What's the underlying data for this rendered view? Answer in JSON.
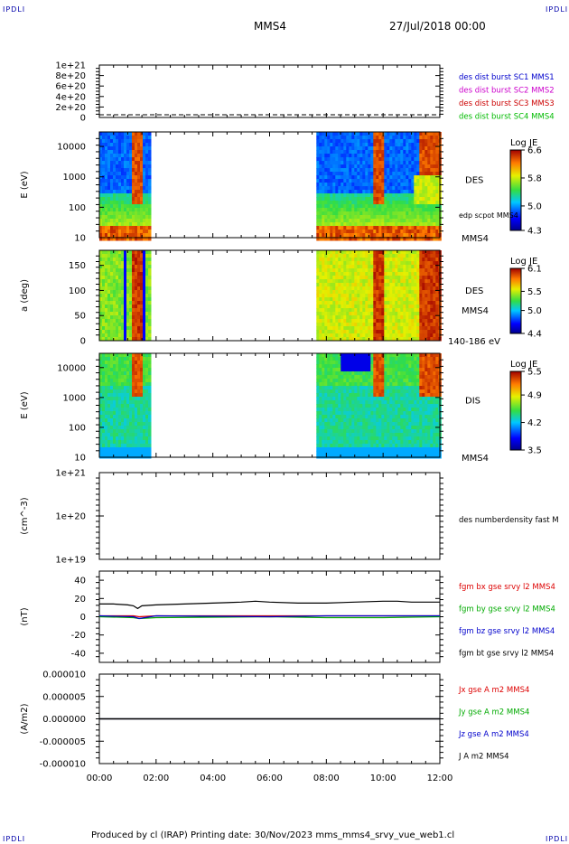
{
  "corners": {
    "label": "IPDLI"
  },
  "header": {
    "spacecraft": "MMS4",
    "datetime": "27/Jul/2018 00:00"
  },
  "footer": {
    "text": "Produced by cl (IRAP)   Printing date: 30/Nov/2023   mms_mms4_srvy_vue_web1.cl"
  },
  "colors": {
    "mms1": "#0000cc",
    "mms2": "#cc00cc",
    "mms3": "#cc0000",
    "mms4": "#00bb00",
    "bx": "#dd0000",
    "by": "#00aa00",
    "bz": "#0000cc",
    "bt": "#000000"
  },
  "time_axis": {
    "range_hours": [
      0,
      12
    ],
    "ticks": [
      "00:00",
      "02:00",
      "04:00",
      "06:00",
      "08:00",
      "10:00",
      "12:00"
    ]
  },
  "chart_data": [
    {
      "type": "line",
      "panel": "des-dist-burst",
      "yticks": [
        "1e+21",
        "8e+20",
        "6e+20",
        "4e+20",
        "2e+20",
        "0"
      ],
      "series": [
        {
          "name": "des dist burst SC1 MMS1",
          "x": [
            0,
            12
          ],
          "values": [
            0,
            0
          ]
        },
        {
          "name": "des dist burst SC2 MMS2",
          "x": [
            0,
            12
          ],
          "values": [
            0,
            0
          ]
        },
        {
          "name": "des dist burst SC3 MMS3",
          "x": [
            0,
            12
          ],
          "values": [
            0,
            0
          ]
        },
        {
          "name": "des dist burst SC4 MMS4",
          "x": [
            0,
            12
          ],
          "values": [
            0,
            0
          ]
        }
      ],
      "ylim": [
        0,
        1e+21
      ]
    },
    {
      "type": "heatmap",
      "panel": "des-energy",
      "ylabel": "E (eV)",
      "yticks": [
        "10000",
        "1000",
        "100",
        "10"
      ],
      "ylog": true,
      "ylim": [
        10,
        30000
      ],
      "right_label": "DES",
      "right_sub": "edp scpot MMS4",
      "right_bottom": "MMS4",
      "colorbar": {
        "title": "Log JE",
        "ticks": [
          "6.6",
          "5.8",
          "5.0",
          "4.3"
        ],
        "range": [
          4.3,
          6.6
        ]
      },
      "data_intervals_hours": [
        [
          0,
          1.75
        ],
        [
          7.65,
          12
        ]
      ]
    },
    {
      "type": "heatmap",
      "panel": "des-pitch-angle",
      "ylabel": "a (deg)",
      "yticks": [
        "150",
        "100",
        "50",
        "0"
      ],
      "ylim": [
        0,
        180
      ],
      "right_label": "DES",
      "right_sub": "MMS4",
      "right_bottom": "140-186 eV",
      "colorbar": {
        "title": "Log JE",
        "ticks": [
          "6.1",
          "5.5",
          "5.0",
          "4.4"
        ],
        "range": [
          4.4,
          6.1
        ]
      },
      "data_intervals_hours": [
        [
          0,
          1.75
        ],
        [
          7.65,
          12
        ]
      ]
    },
    {
      "type": "heatmap",
      "panel": "dis-energy",
      "ylabel": "E (eV)",
      "yticks": [
        "10000",
        "1000",
        "100",
        "10"
      ],
      "ylog": true,
      "ylim": [
        10,
        30000
      ],
      "right_label": "DIS",
      "right_bottom": "MMS4",
      "colorbar": {
        "title": "Log JE",
        "ticks": [
          "5.5",
          "4.9",
          "4.2",
          "3.5"
        ],
        "range": [
          3.5,
          5.5
        ]
      },
      "data_intervals_hours": [
        [
          0,
          1.75
        ],
        [
          7.65,
          12
        ]
      ]
    },
    {
      "type": "line",
      "panel": "des-density",
      "ylabel": "(cm^-3)",
      "yticks": [
        "1e+21",
        "1e+20",
        "1e+19"
      ],
      "ylog": true,
      "ylim": [
        1e+19,
        1e+21
      ],
      "right_label": "des numberdensity fast M",
      "series": []
    },
    {
      "type": "line",
      "panel": "fgm",
      "ylabel": "(nT)",
      "yticks": [
        "40",
        "20",
        "0",
        "-20",
        "-40"
      ],
      "ylim": [
        -50,
        50
      ],
      "series": [
        {
          "name": "fgm bx gse srvy l2 MMS4",
          "x": [
            0,
            1.2,
            1.4,
            2,
            6,
            8,
            10,
            12
          ],
          "values": [
            1,
            1,
            0,
            1,
            1,
            1,
            1,
            1
          ]
        },
        {
          "name": "fgm by gse srvy l2 MMS4",
          "x": [
            0,
            1.2,
            1.4,
            2,
            6,
            8,
            10,
            12
          ],
          "values": [
            0,
            -1,
            -2,
            -1,
            0,
            -1,
            -1,
            0
          ]
        },
        {
          "name": "fgm bz gse srvy l2 MMS4",
          "x": [
            0,
            1.2,
            1.4,
            2,
            6,
            8,
            10,
            12
          ],
          "values": [
            1,
            0,
            -2,
            1,
            0,
            1,
            1,
            1
          ]
        },
        {
          "name": "fgm bt gse srvy l2 MMS4",
          "x": [
            0,
            0.5,
            1.0,
            1.2,
            1.35,
            1.5,
            2,
            3,
            4,
            5,
            5.5,
            6,
            7,
            8,
            9,
            10,
            10.5,
            11,
            11.5,
            12
          ],
          "values": [
            14,
            14,
            13,
            12,
            9,
            12,
            13,
            14,
            15,
            16,
            17,
            16,
            15,
            15,
            16,
            17,
            17,
            16,
            16,
            16
          ]
        }
      ]
    },
    {
      "type": "line",
      "panel": "current",
      "ylabel": "(A/m2)",
      "yticks": [
        "0.000010",
        "0.000005",
        "0.000000",
        "-0.000005",
        "-0.000010"
      ],
      "ylim": [
        -1e-05,
        1e-05
      ],
      "series": [
        {
          "name": "Jx gse A m2 MMS4",
          "x": [
            0,
            12
          ],
          "values": [
            0,
            0
          ]
        },
        {
          "name": "Jy gse A m2 MMS4",
          "x": [
            0,
            12
          ],
          "values": [
            0,
            0
          ]
        },
        {
          "name": "Jz gse A m2 MMS4",
          "x": [
            0,
            12
          ],
          "values": [
            0,
            0
          ]
        },
        {
          "name": "J A m2 MMS4",
          "x": [
            0,
            12
          ],
          "values": [
            0,
            0
          ]
        }
      ]
    }
  ]
}
